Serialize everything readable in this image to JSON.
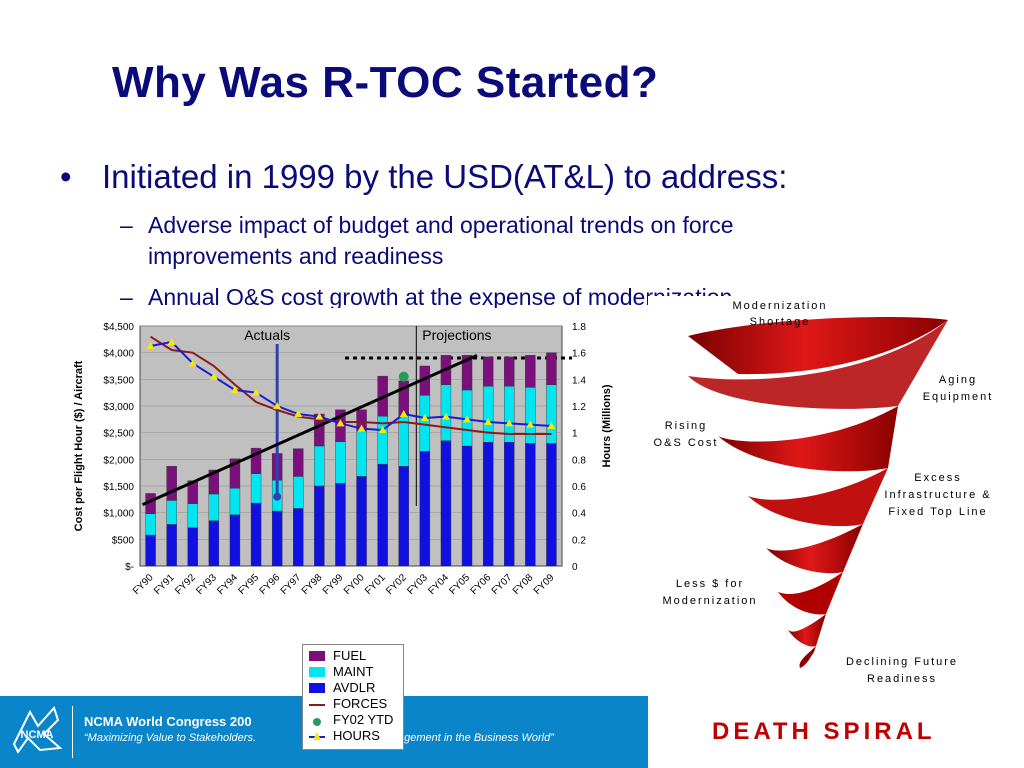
{
  "slide": {
    "title": "Why Was R-TOC Started?",
    "bullet": "Initiated in 1999 by the USD(AT&L) to address:",
    "sub1_line1": "Adverse impact of budget and operational trends on force",
    "sub1_line2": "improvements and readiness",
    "sub2": "Annual O&S cost growth at the expense of modernization"
  },
  "footer": {
    "line1": "NCMA World Congress 200",
    "line2": "“Maximizing Value to Stakeholders.",
    "line2_tail": "agement in the Business World”",
    "logo_text": "NCMA"
  },
  "chart_data": {
    "type": "bar",
    "categories": [
      "FY90",
      "FY91",
      "FY92",
      "FY93",
      "FY94",
      "FY95",
      "FY96",
      "FY97",
      "FY98",
      "FY99",
      "FY00",
      "FY01",
      "FY02",
      "FY03",
      "FY04",
      "FY05",
      "FY06",
      "FY07",
      "FY08",
      "FY09"
    ],
    "series": [
      {
        "name": "AVDLR",
        "values": [
          580,
          780,
          720,
          850,
          960,
          1180,
          1030,
          1080,
          1500,
          1550,
          1680,
          1910,
          1870,
          2150,
          2350,
          2250,
          2320,
          2320,
          2300,
          2300
        ]
      },
      {
        "name": "MAINT",
        "values": [
          400,
          450,
          450,
          500,
          500,
          550,
          580,
          600,
          750,
          780,
          850,
          900,
          950,
          1050,
          1050,
          1050,
          1050,
          1050,
          1050,
          1100
        ]
      },
      {
        "name": "FUEL",
        "values": [
          380,
          640,
          430,
          450,
          550,
          480,
          500,
          520,
          600,
          600,
          400,
          750,
          650,
          550,
          550,
          650,
          550,
          550,
          600,
          600
        ]
      }
    ],
    "lines": [
      {
        "name": "FORCES",
        "axis": "right",
        "values": [
          1.72,
          1.62,
          1.6,
          1.5,
          1.36,
          1.23,
          1.17,
          1.12,
          1.1,
          1.08,
          1.08,
          1.07,
          1.08,
          1.06,
          1.04,
          1.02,
          1.0,
          0.99,
          0.99,
          0.99
        ]
      },
      {
        "name": "HOURS",
        "axis": "right",
        "values": [
          1.65,
          1.68,
          1.52,
          1.42,
          1.32,
          1.3,
          1.2,
          1.14,
          1.12,
          1.07,
          1.03,
          1.02,
          1.14,
          1.11,
          1.12,
          1.1,
          1.08,
          1.07,
          1.06,
          1.05
        ]
      }
    ],
    "points": [
      {
        "name": "FY02 YTD",
        "category": "FY02",
        "value": 3550
      }
    ],
    "ylabel": "Cost per Flight Hour ($) / Aircraft",
    "y2label": "Hours (Millions)",
    "ylim": [
      0,
      4500
    ],
    "y2lim": [
      0,
      1.8
    ],
    "yticks": [
      "$-",
      "$500",
      "$1,000",
      "$1,500",
      "$2,000",
      "$2,500",
      "$3,000",
      "$3,500",
      "$4,000",
      "$4,500"
    ],
    "y2ticks": [
      "0",
      "0.2",
      "0.4",
      "0.6",
      "0.8",
      "1",
      "1.2",
      "1.4",
      "1.6",
      "1.8"
    ],
    "annotations": [
      "Actuals",
      "Projections"
    ],
    "legend": [
      "FUEL",
      "MAINT",
      "AVDLR",
      "FORCES",
      "FY02 YTD",
      "HOURS"
    ],
    "colors": {
      "FUEL": "#7b0f7b",
      "MAINT": "#00e6f0",
      "AVDLR": "#1010e0",
      "FORCES": "#8b1a1a",
      "FY02_YTD": "#2a9a5a",
      "HOURS_line": "#1c1cd0",
      "HOURS_marker": "#f2e80a",
      "plot_bg": "#c0c0c0"
    }
  },
  "spiral": {
    "labels": [
      {
        "line1": "Modernization",
        "line2": "Shortage"
      },
      {
        "line1": "Aging",
        "line2": "Equipment"
      },
      {
        "line1": "Rising",
        "line2": "O&S Cost"
      },
      {
        "line1": "Excess",
        "line2": "Infrastructure &",
        "line3": "Fixed Top Line"
      },
      {
        "line1": "Less $ for",
        "line2": "Modernization"
      },
      {
        "line1": "Declining Future",
        "line2": "Readiness"
      }
    ],
    "caption": "DEATH SPIRAL"
  }
}
